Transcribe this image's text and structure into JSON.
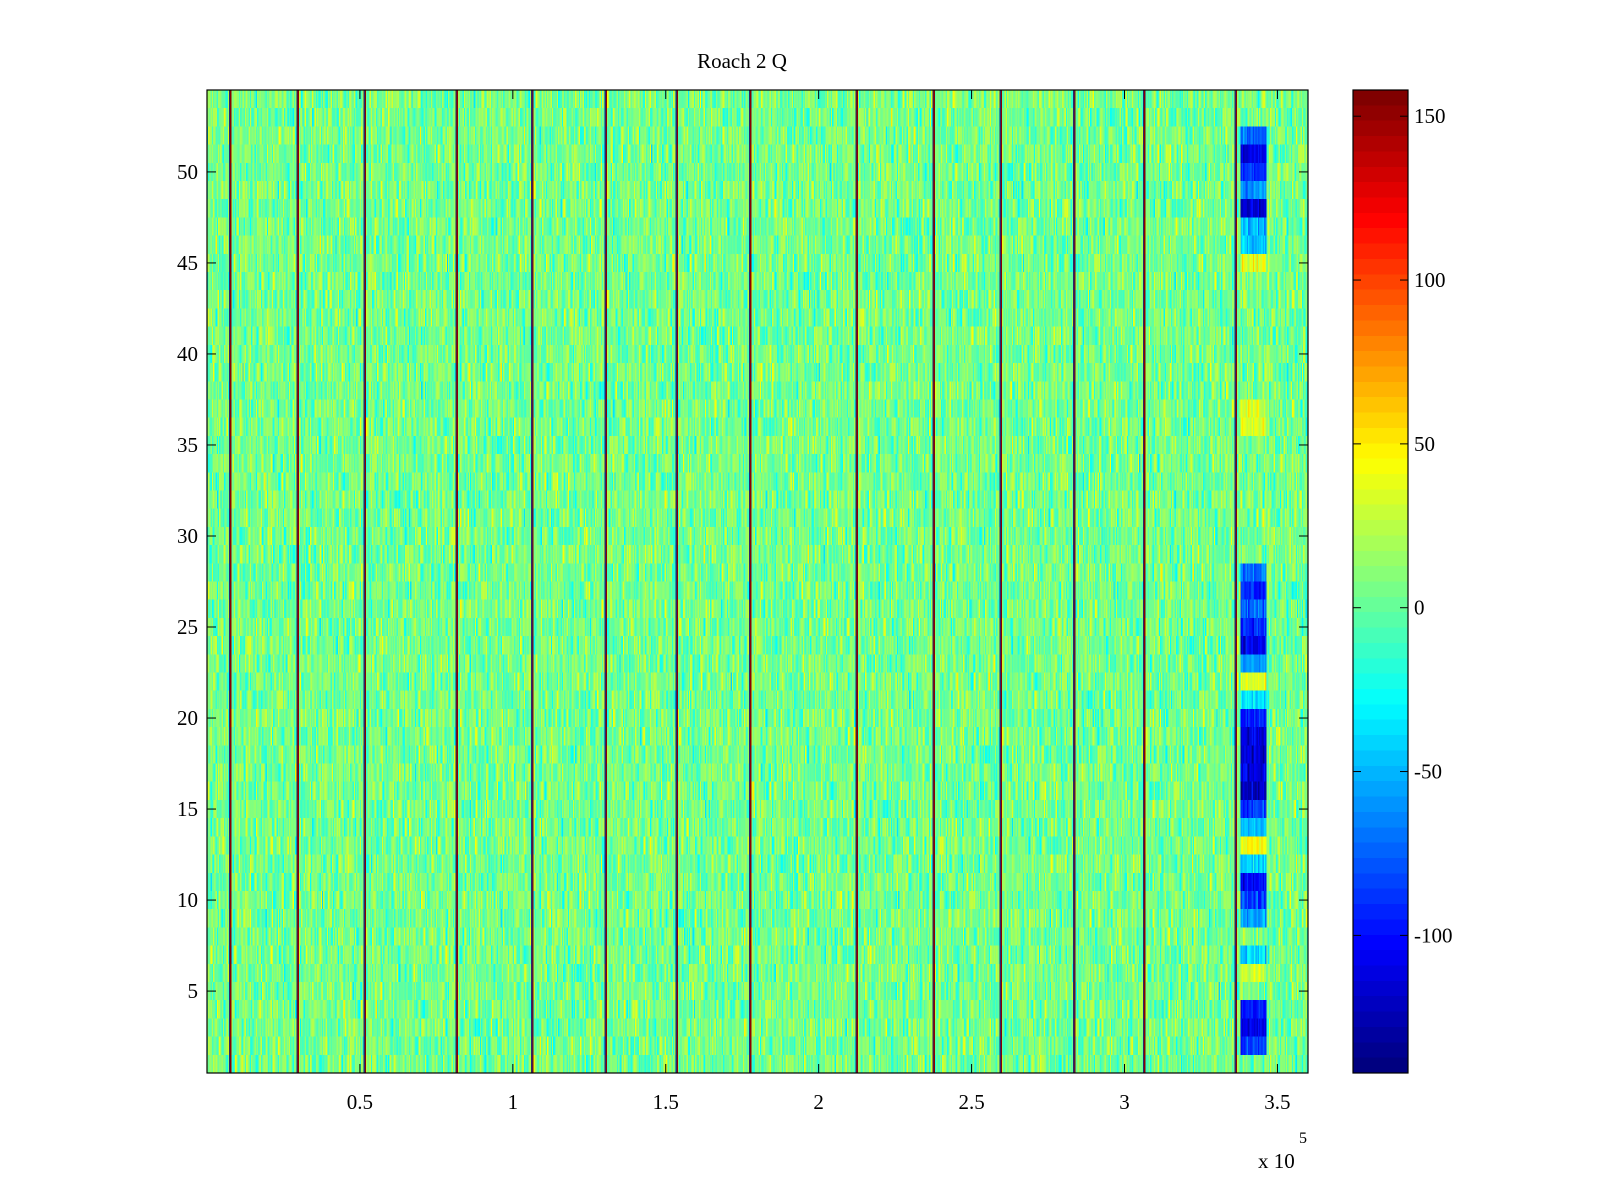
{
  "chart_data": {
    "type": "heatmap",
    "title": "Roach 2 Q",
    "xlabel": "",
    "ylabel": "",
    "x_multiplier_label": "x 10",
    "x_multiplier_exponent": "5",
    "xlim": [
      0,
      360000
    ],
    "ylim": [
      0.5,
      54.5
    ],
    "x_ticks": [
      {
        "value": 50000,
        "label": "0.5"
      },
      {
        "value": 100000,
        "label": "1"
      },
      {
        "value": 150000,
        "label": "1.5"
      },
      {
        "value": 200000,
        "label": "2"
      },
      {
        "value": 250000,
        "label": "2.5"
      },
      {
        "value": 300000,
        "label": "3"
      },
      {
        "value": 350000,
        "label": "3.5"
      }
    ],
    "y_ticks": [
      {
        "value": 5,
        "label": "5"
      },
      {
        "value": 10,
        "label": "10"
      },
      {
        "value": 15,
        "label": "15"
      },
      {
        "value": 20,
        "label": "20"
      },
      {
        "value": 25,
        "label": "25"
      },
      {
        "value": 30,
        "label": "30"
      },
      {
        "value": 35,
        "label": "35"
      },
      {
        "value": 40,
        "label": "40"
      },
      {
        "value": 45,
        "label": "45"
      },
      {
        "value": 50,
        "label": "50"
      }
    ],
    "rows": 54,
    "background_level": 5,
    "colormap": "jet",
    "colorbar": {
      "clim": [
        -142,
        158
      ],
      "ticks": [
        {
          "value": -100,
          "label": "-100"
        },
        {
          "value": -50,
          "label": "-50"
        },
        {
          "value": 0,
          "label": "0"
        },
        {
          "value": 50,
          "label": "50"
        },
        {
          "value": 100,
          "label": "100"
        },
        {
          "value": 150,
          "label": "150"
        }
      ]
    },
    "vertical_stripes_x": [
      7500,
      29500,
      51500,
      81500,
      106500,
      130500,
      153500,
      177500,
      212500,
      237500,
      259500,
      283500,
      306500,
      336500
    ],
    "stripe_value": 155,
    "anomaly_region": {
      "x_range": [
        338000,
        346000
      ],
      "rows": [
        {
          "y": 52,
          "value": -75
        },
        {
          "y": 51,
          "value": -115
        },
        {
          "y": 50,
          "value": -90
        },
        {
          "y": 49,
          "value": -60
        },
        {
          "y": 48,
          "value": -120
        },
        {
          "y": 47,
          "value": -50
        },
        {
          "y": 46,
          "value": -40
        },
        {
          "y": 45,
          "value": 40
        },
        {
          "y": 37,
          "value": 35
        },
        {
          "y": 36,
          "value": 40
        },
        {
          "y": 28,
          "value": -70
        },
        {
          "y": 27,
          "value": -95
        },
        {
          "y": 26,
          "value": -75
        },
        {
          "y": 25,
          "value": -90
        },
        {
          "y": 24,
          "value": -110
        },
        {
          "y": 23,
          "value": -60
        },
        {
          "y": 22,
          "value": 35
        },
        {
          "y": 21,
          "value": -40
        },
        {
          "y": 20,
          "value": -100
        },
        {
          "y": 19,
          "value": -115
        },
        {
          "y": 18,
          "value": -120
        },
        {
          "y": 17,
          "value": -110
        },
        {
          "y": 16,
          "value": -125
        },
        {
          "y": 15,
          "value": -90
        },
        {
          "y": 14,
          "value": -50
        },
        {
          "y": 13,
          "value": 45
        },
        {
          "y": 12,
          "value": -45
        },
        {
          "y": 11,
          "value": -100
        },
        {
          "y": 10,
          "value": -85
        },
        {
          "y": 9,
          "value": -55
        },
        {
          "y": 7,
          "value": -40
        },
        {
          "y": 6,
          "value": 30
        },
        {
          "y": 4,
          "value": -100
        },
        {
          "y": 3,
          "value": -110
        },
        {
          "y": 2,
          "value": -90
        }
      ]
    }
  }
}
